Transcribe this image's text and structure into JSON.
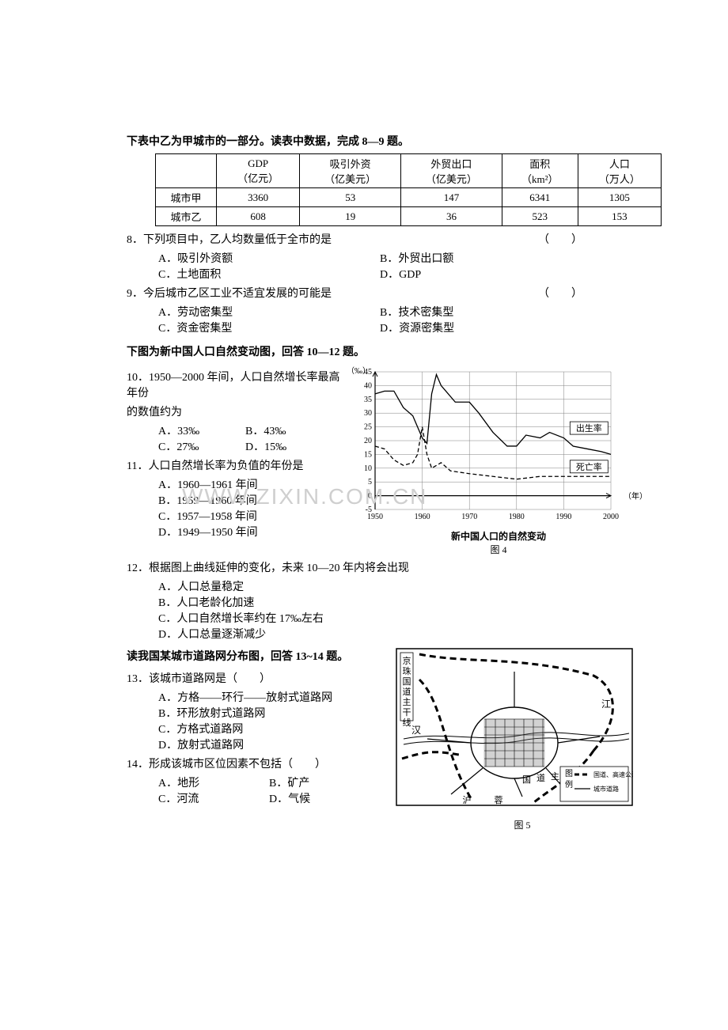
{
  "intro8_9": "下表中乙为甲城市的一部分。读表中数据，完成 8—9 题。",
  "table": {
    "columns": [
      {
        "l1": "",
        "l2": ""
      },
      {
        "l1": "GDP",
        "l2": "（亿元）"
      },
      {
        "l1": "吸引外资",
        "l2": "（亿美元）"
      },
      {
        "l1": "外贸出口",
        "l2": "（亿美元）"
      },
      {
        "l1": "面积",
        "l2": "（km²）"
      },
      {
        "l1": "人口",
        "l2": "（万人）"
      }
    ],
    "rows": [
      {
        "name": "城市甲",
        "gdp": "3360",
        "fdi": "53",
        "export": "147",
        "area": "6341",
        "pop": "1305"
      },
      {
        "name": "城市乙",
        "gdp": "608",
        "fdi": "19",
        "export": "36",
        "area": "523",
        "pop": "153"
      }
    ]
  },
  "q8": {
    "stem": "8．下列项目中，乙人均数量低于全市的是",
    "paren": "（　　）",
    "A": "A．吸引外资额",
    "B": "B．外贸出口额",
    "C": "C．土地面积",
    "D": "D．GDP"
  },
  "q9": {
    "stem": "9．今后城市乙区工业不适宜发展的可能是",
    "paren": "（　　）",
    "A": "A．劳动密集型",
    "B": "B．技术密集型",
    "C": "C．资金密集型",
    "D": "D．资源密集型"
  },
  "intro10_12": "下图为新中国人口自然变动图，回答 10—12 题。",
  "q10": {
    "stem1": "10．1950—2000 年间，人口自然增长率最高年份",
    "stem2": "的数值约为",
    "A": "A．33‰",
    "B": "B．43‰",
    "C": "C．27‰",
    "D": "D．15‰"
  },
  "q11": {
    "stem": "11．人口自然增长率为负值的年份是",
    "A": "A．1960—1961 年间",
    "B": "B．1959—1960 年间",
    "C": "C．1957—1958 年间",
    "D": "D．1949—1950 年间"
  },
  "q12": {
    "stem": "12．根据图上曲线延伸的变化，未来 10—20 年内将会出现",
    "A": "A．人口总量稳定",
    "B": "B．人口老龄化加速",
    "C": "C．人口自然增长率约在 17‰左右",
    "D": "D．人口总量逐渐减少"
  },
  "intro13_14": "读我国某城市道路网分布图，回答 13~14 题。",
  "q13": {
    "stem": "13．该城市道路网是（　　）",
    "A": "A．方格——环行——放射式道路网",
    "B": "B．环形放射式道路网",
    "C": "C．方格式道路网",
    "D": "D．放射式道路网"
  },
  "q14": {
    "stem": "14．形成该城市区位因素不包括（　　）",
    "A": "A．地形",
    "B": "B．矿产",
    "C": "C．河流",
    "D": "D．气候"
  },
  "chart": {
    "title": "新中国人口的自然变动",
    "fig_label": "图 4",
    "y_unit": "（‰）",
    "x_unit": "（年）",
    "xticks": [
      1950,
      1960,
      1970,
      1980,
      1990,
      2000
    ],
    "yticks": [
      -5,
      0,
      5,
      10,
      15,
      20,
      25,
      30,
      35,
      40,
      45
    ],
    "ylim": [
      -5,
      45
    ],
    "xlim": [
      1950,
      2000
    ],
    "grid_color": "#808080",
    "axis_color": "#000000",
    "bg_color": "#ffffff",
    "line_width": 1.3,
    "series": {
      "birth": {
        "label": "出生率",
        "label_x": 1992,
        "label_y": 24,
        "style": "solid",
        "points": [
          [
            1950,
            37
          ],
          [
            1952,
            38
          ],
          [
            1954,
            38
          ],
          [
            1956,
            32
          ],
          [
            1958,
            29
          ],
          [
            1959,
            25
          ],
          [
            1960,
            21
          ],
          [
            1961,
            19
          ],
          [
            1962,
            37
          ],
          [
            1963,
            44
          ],
          [
            1964,
            40
          ],
          [
            1965,
            38
          ],
          [
            1967,
            34
          ],
          [
            1970,
            34
          ],
          [
            1972,
            30
          ],
          [
            1975,
            23
          ],
          [
            1978,
            18
          ],
          [
            1980,
            18
          ],
          [
            1982,
            22
          ],
          [
            1985,
            21
          ],
          [
            1987,
            23
          ],
          [
            1990,
            21
          ],
          [
            1992,
            18
          ],
          [
            1995,
            17
          ],
          [
            1998,
            16
          ],
          [
            2000,
            15
          ]
        ]
      },
      "death": {
        "label": "死亡率",
        "label_x": 1992,
        "label_y": 10,
        "style": "dashed",
        "points": [
          [
            1950,
            18
          ],
          [
            1952,
            17
          ],
          [
            1954,
            13
          ],
          [
            1956,
            11
          ],
          [
            1958,
            12
          ],
          [
            1959,
            15
          ],
          [
            1960,
            25
          ],
          [
            1961,
            15
          ],
          [
            1962,
            10
          ],
          [
            1964,
            12
          ],
          [
            1966,
            9
          ],
          [
            1970,
            8
          ],
          [
            1975,
            7
          ],
          [
            1980,
            6
          ],
          [
            1985,
            7
          ],
          [
            1990,
            7
          ],
          [
            1995,
            7
          ],
          [
            2000,
            7
          ]
        ]
      }
    }
  },
  "map": {
    "fig_label": "图 5",
    "labels": {
      "north": "京珠国道主干线",
      "river_left": "汉",
      "river_right": "江",
      "south_l": "沪",
      "south_c": "蓉",
      "south_r1": "国",
      "south_r2": "道",
      "south_r3": "主",
      "south_r4": "干",
      "south_r5": "线"
    },
    "legend": {
      "title": "图例",
      "dash": "国道、高速公路",
      "solid": "城市道路"
    },
    "border_color": "#000000",
    "city_fill": "#808080"
  },
  "watermark": "WWW.ZIXIN.COM.CN"
}
